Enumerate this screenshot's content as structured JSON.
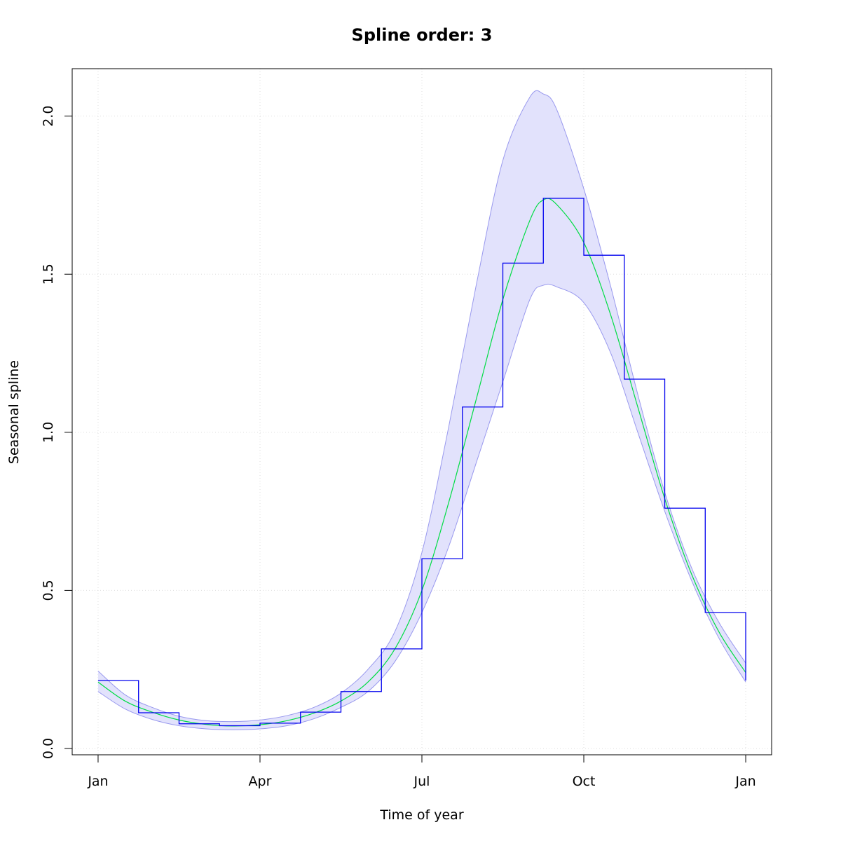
{
  "chart_data": {
    "type": "line",
    "title": "Spline order: 3",
    "xlabel": "Time of year",
    "ylabel": "Seasonal spline",
    "x_ticks": [
      {
        "label": "Jan",
        "month": 0
      },
      {
        "label": "Apr",
        "month": 3
      },
      {
        "label": "Jul",
        "month": 6
      },
      {
        "label": "Oct",
        "month": 9
      },
      {
        "label": "Jan",
        "month": 12
      }
    ],
    "y_ticks": [
      {
        "label": "0.0",
        "value": 0.0
      },
      {
        "label": "0.5",
        "value": 0.5
      },
      {
        "label": "1.0",
        "value": 1.0
      },
      {
        "label": "1.5",
        "value": 1.5
      },
      {
        "label": "2.0",
        "value": 2.0
      }
    ],
    "xlim": [
      -0.48,
      12.48
    ],
    "ylim": [
      -0.02,
      2.15
    ],
    "grid": true,
    "colors": {
      "spline": "#00dd44",
      "step": "#0000ee",
      "band_fill": "#e2e2fc",
      "band_edge": "#9999ee",
      "grid": "#dddddd"
    },
    "series": [
      {
        "kind": "step",
        "x": [
          0,
          0.75,
          1.5,
          2.25,
          3,
          3.75,
          4.5,
          5.25,
          6,
          6.75,
          7.5,
          8.25,
          9,
          9.75,
          10.5,
          11.25,
          12
        ],
        "values": [
          0.215,
          0.113,
          0.078,
          0.072,
          0.08,
          0.115,
          0.18,
          0.315,
          0.6,
          1.08,
          1.535,
          1.74,
          1.56,
          1.168,
          0.76,
          0.43,
          0.215
        ]
      },
      {
        "kind": "spline",
        "x": [
          0,
          0.5,
          1,
          1.5,
          2,
          2.5,
          3,
          3.5,
          4,
          4.5,
          5,
          5.5,
          6,
          6.5,
          7,
          7.5,
          8,
          8.25,
          8.5,
          9,
          9.5,
          10,
          10.5,
          11,
          11.5,
          12
        ],
        "values": [
          0.21,
          0.15,
          0.115,
          0.09,
          0.076,
          0.071,
          0.075,
          0.088,
          0.112,
          0.15,
          0.21,
          0.315,
          0.5,
          0.78,
          1.1,
          1.42,
          1.67,
          1.735,
          1.72,
          1.6,
          1.37,
          1.08,
          0.79,
          0.55,
          0.37,
          0.24
        ]
      },
      {
        "kind": "band",
        "x": [
          0,
          0.5,
          1,
          1.5,
          2,
          2.5,
          3,
          3.5,
          4,
          4.5,
          5,
          5.5,
          6,
          6.5,
          7,
          7.5,
          8,
          8.25,
          8.5,
          9,
          9.5,
          10,
          10.5,
          11,
          11.5,
          12
        ],
        "upper": [
          0.245,
          0.17,
          0.13,
          0.102,
          0.088,
          0.085,
          0.09,
          0.104,
          0.13,
          0.175,
          0.25,
          0.37,
          0.62,
          1.02,
          1.46,
          1.86,
          2.06,
          2.07,
          2.02,
          1.77,
          1.46,
          1.12,
          0.81,
          0.57,
          0.4,
          0.27
        ],
        "lower": [
          0.18,
          0.125,
          0.092,
          0.072,
          0.062,
          0.059,
          0.062,
          0.072,
          0.094,
          0.13,
          0.18,
          0.275,
          0.43,
          0.64,
          0.9,
          1.16,
          1.42,
          1.465,
          1.46,
          1.41,
          1.25,
          1.0,
          0.75,
          0.53,
          0.35,
          0.21
        ]
      }
    ]
  }
}
